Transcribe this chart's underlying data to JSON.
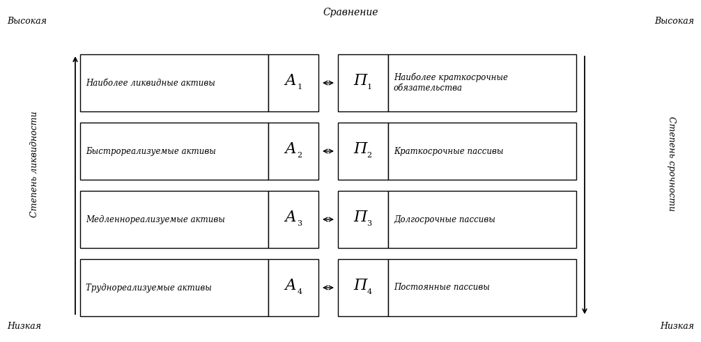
{
  "title": "Сравнение",
  "left_axis_label": "Степень ликвидности",
  "right_axis_label": "Степень срочности",
  "top_left_label": "Высокая",
  "bottom_left_label": "Низкая",
  "top_right_label": "Высокая",
  "bottom_right_label": "Низкая",
  "rows": [
    {
      "left_text": "Наиболее ликвидные активы",
      "left_symbol": "А",
      "left_index": "1",
      "right_symbol": "П",
      "right_index": "1",
      "right_text": "Наиболее краткосрочные\nобязательства"
    },
    {
      "left_text": "Быстрореализуемые активы",
      "left_symbol": "А",
      "left_index": "2",
      "right_symbol": "П",
      "right_index": "2",
      "right_text": "Краткосрочные пассивы"
    },
    {
      "left_text": "Медленнореализуемые активы",
      "left_symbol": "А",
      "left_index": "3",
      "right_symbol": "П",
      "right_index": "3",
      "right_text": "Долгосрочные пассивы"
    },
    {
      "left_text": "Труднореализуемые активы",
      "left_symbol": "А",
      "left_index": "4",
      "right_symbol": "П",
      "right_index": "4",
      "right_text": "Постоянные пассивы"
    }
  ],
  "bg_color": "#ffffff",
  "box_fill": "#ffffff",
  "box_edge": "#000000",
  "text_color": "#000000",
  "font_family": "DejaVu Serif",
  "fig_width": 10.06,
  "fig_height": 4.91,
  "dpi": 100
}
